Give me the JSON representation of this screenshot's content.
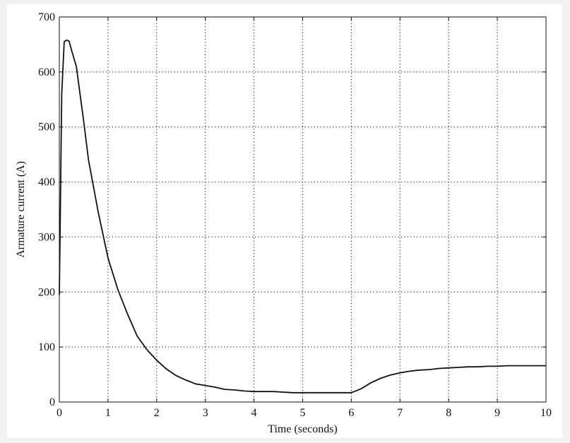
{
  "chart_data": {
    "type": "line",
    "title": "",
    "xlabel": "Time (seconds)",
    "ylabel": "Armature current (A)",
    "xlim": [
      0,
      10
    ],
    "ylim": [
      0,
      700
    ],
    "xticks": [
      0,
      1,
      2,
      3,
      4,
      5,
      6,
      7,
      8,
      9,
      10
    ],
    "yticks": [
      0,
      100,
      200,
      300,
      400,
      500,
      600,
      700
    ],
    "grid": true,
    "grid_style": "dotted",
    "line_color": "#111111",
    "series": [
      {
        "x": [
          0,
          0.05,
          0.1,
          0.15,
          0.2,
          0.25,
          0.35,
          0.5,
          0.6,
          0.8,
          1.0,
          1.2,
          1.4,
          1.6,
          1.8,
          2.0,
          2.2,
          2.4,
          2.6,
          2.8,
          3.0,
          3.2,
          3.4,
          3.6,
          3.8,
          4.0,
          4.2,
          4.4,
          4.6,
          4.8,
          5.0,
          5.2,
          5.4,
          5.6,
          5.8,
          6.0,
          6.2,
          6.4,
          6.6,
          6.8,
          7.0,
          7.2,
          7.4,
          7.6,
          7.8,
          8.0,
          8.2,
          8.4,
          8.6,
          8.8,
          9.0,
          9.2,
          9.5,
          10.0
        ],
        "y": [
          195,
          560,
          655,
          658,
          656,
          640,
          610,
          510,
          440,
          345,
          262,
          205,
          160,
          120,
          95,
          76,
          60,
          48,
          40,
          33,
          30,
          27,
          23,
          22,
          20,
          19,
          19,
          19,
          18,
          17,
          17,
          17,
          17,
          17,
          17,
          17,
          24,
          35,
          43,
          49,
          53,
          56,
          58,
          59,
          61,
          62,
          63,
          64,
          64,
          65,
          65,
          66,
          66,
          66
        ]
      }
    ]
  }
}
